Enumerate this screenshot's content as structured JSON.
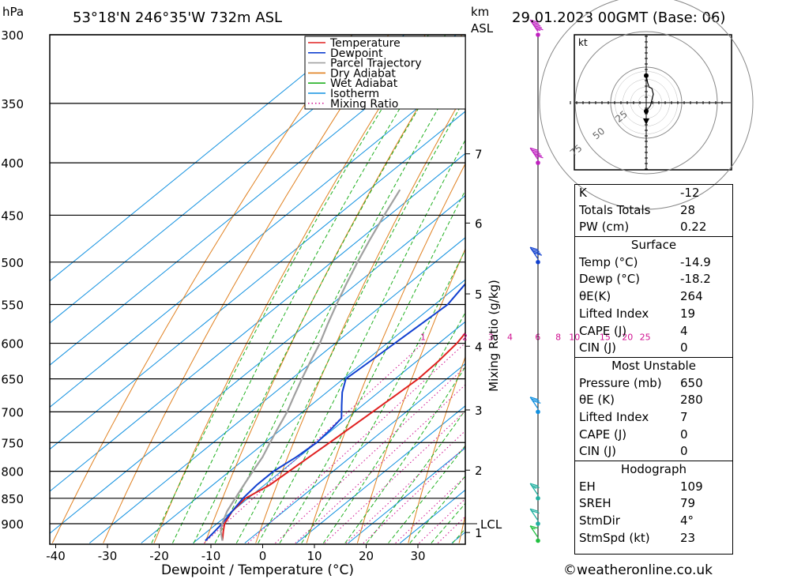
{
  "header": {
    "pressure_unit": "hPa",
    "location": "53°18'N  246°35'W  732m  ASL",
    "height_unit_km": "km",
    "height_unit_asl": "ASL",
    "datetime": "29.01.2023  00GMT  (Base: 06)"
  },
  "footer": {
    "copyright": "©weatheronline.co.uk"
  },
  "chart_data": {
    "type": "line",
    "title": "",
    "xlabel": "Dewpoint / Temperature (°C)",
    "ylabel": "hPa",
    "secondary_ylabel": "Mixing Ratio (g/kg)",
    "xlim": [
      -40,
      40
    ],
    "ylim": [
      940,
      300
    ],
    "x_ticks": [
      "-40",
      "-30",
      "-20",
      "-10",
      "0",
      "10",
      "20",
      "30"
    ],
    "pressure_levels": [
      "300",
      "350",
      "400",
      "450",
      "500",
      "550",
      "600",
      "650",
      "700",
      "750",
      "800",
      "850",
      "900"
    ],
    "km_ticks": [
      {
        "label": "7",
        "p": 392
      },
      {
        "label": "6",
        "p": 458
      },
      {
        "label": "5",
        "p": 537
      },
      {
        "label": "4",
        "p": 604
      },
      {
        "label": "3",
        "p": 697
      },
      {
        "label": "2",
        "p": 798
      },
      {
        "label": "1",
        "p": 918
      }
    ],
    "lcl": {
      "label": "LCL",
      "p": 900
    },
    "mixing_ratio_labels": [
      "1",
      "2",
      "3",
      "4",
      "6",
      "8",
      "10",
      "15",
      "20",
      "25"
    ],
    "legend": {
      "placement": "top-right",
      "entries": [
        {
          "name": "Temperature",
          "color": "#e02020",
          "style": "solid"
        },
        {
          "name": "Dewpoint",
          "color": "#1040d0",
          "style": "solid"
        },
        {
          "name": "Parcel Trajectory",
          "color": "#a0a0a0",
          "style": "solid"
        },
        {
          "name": "Dry Adiabat",
          "color": "#e08020",
          "style": "solid"
        },
        {
          "name": "Wet Adiabat",
          "color": "#20b020",
          "style": "solid"
        },
        {
          "name": "Isotherm",
          "color": "#1090e0",
          "style": "solid"
        },
        {
          "name": "Mixing Ratio",
          "color": "#d01090",
          "style": "dotted"
        }
      ]
    },
    "series": [
      {
        "name": "Temperature",
        "color": "#e02020",
        "points": [
          [
            -14.9,
            935
          ],
          [
            -17,
            915
          ],
          [
            -18.5,
            900
          ],
          [
            -20,
            875
          ],
          [
            -20.5,
            850
          ],
          [
            -19,
            825
          ],
          [
            -18.5,
            800
          ],
          [
            -18,
            775
          ],
          [
            -17.5,
            750
          ],
          [
            -17,
            725
          ],
          [
            -16.5,
            700
          ],
          [
            -16,
            675
          ],
          [
            -15.5,
            650
          ],
          [
            -15.8,
            625
          ],
          [
            -16.5,
            600
          ],
          [
            -18,
            575
          ],
          [
            -20,
            550
          ],
          [
            -22,
            525
          ],
          [
            -24,
            500
          ],
          [
            -26,
            475
          ],
          [
            -28,
            450
          ],
          [
            -30,
            425
          ],
          [
            -32,
            400
          ],
          [
            -34,
            375
          ],
          [
            -35.5,
            350
          ],
          [
            -35,
            325
          ],
          [
            -35,
            300
          ]
        ]
      },
      {
        "name": "Dewpoint",
        "color": "#1040d0",
        "points": [
          [
            -18.2,
            935
          ],
          [
            -18.5,
            920
          ],
          [
            -19,
            900
          ],
          [
            -20,
            875
          ],
          [
            -21,
            850
          ],
          [
            -21.5,
            825
          ],
          [
            -21.5,
            800
          ],
          [
            -20.5,
            775
          ],
          [
            -20,
            750
          ],
          [
            -20.5,
            725
          ],
          [
            -21,
            710
          ],
          [
            -24,
            690
          ],
          [
            -27,
            670
          ],
          [
            -29.5,
            650
          ],
          [
            -29,
            625
          ],
          [
            -28.5,
            600
          ],
          [
            -28,
            575
          ],
          [
            -27.5,
            550
          ],
          [
            -29,
            525
          ],
          [
            -30.5,
            500
          ],
          [
            -30,
            475
          ],
          [
            -30.5,
            450
          ],
          [
            -31.5,
            425
          ],
          [
            -33,
            400
          ],
          [
            -35,
            375
          ],
          [
            -37,
            350
          ],
          [
            -40,
            325
          ],
          [
            -45,
            300
          ]
        ]
      },
      {
        "name": "Parcel Trajectory",
        "color": "#a0a0a0",
        "points": [
          [
            -14.9,
            935
          ],
          [
            -17.5,
            915
          ],
          [
            -19,
            900
          ],
          [
            -21,
            875
          ],
          [
            -22.5,
            850
          ],
          [
            -24,
            825
          ],
          [
            -25.5,
            800
          ],
          [
            -27,
            775
          ],
          [
            -29,
            750
          ],
          [
            -31,
            725
          ],
          [
            -33,
            700
          ],
          [
            -35.5,
            675
          ],
          [
            -38,
            650
          ],
          [
            -40.5,
            625
          ],
          [
            -43,
            600
          ],
          [
            -46,
            575
          ],
          [
            -49,
            550
          ],
          [
            -52,
            525
          ],
          [
            -55,
            500
          ],
          [
            -58,
            475
          ],
          [
            -61,
            450
          ],
          [
            -64,
            425
          ]
        ]
      }
    ]
  },
  "hodograph": {
    "unit": "kt",
    "ring_labels": [
      "25",
      "50",
      "75"
    ],
    "points": [
      [
        0,
        6
      ],
      [
        3,
        2
      ],
      [
        5,
        -6
      ],
      [
        4,
        -10
      ],
      [
        2,
        -11
      ],
      [
        1,
        -14
      ],
      [
        0,
        -19
      ]
    ]
  },
  "wind_barbs": [
    {
      "p": 300,
      "speed_kt": 55,
      "color": "#c020c0"
    },
    {
      "p": 400,
      "speed_kt": 50,
      "color": "#c020c0"
    },
    {
      "p": 500,
      "speed_kt": 40,
      "color": "#1040d0"
    },
    {
      "p": 700,
      "speed_kt": 30,
      "color": "#1090e0"
    },
    {
      "p": 850,
      "speed_kt": 25,
      "color": "#20b0a0"
    },
    {
      "p": 900,
      "speed_kt": 20,
      "color": "#20b0a0"
    },
    {
      "p": 935,
      "speed_kt": 15,
      "color": "#20c040"
    }
  ],
  "indices": {
    "top": [
      {
        "label": "K",
        "value": "-12"
      },
      {
        "label": "Totals Totals",
        "value": "28"
      },
      {
        "label": "PW (cm)",
        "value": "0.22"
      }
    ],
    "surface": {
      "title": "Surface",
      "rows": [
        {
          "label": "Temp (°C)",
          "value": "-14.9"
        },
        {
          "label": "Dewp (°C)",
          "value": "-18.2"
        },
        {
          "label": "θE(K)",
          "value": "264"
        },
        {
          "label": "Lifted Index",
          "value": "19"
        },
        {
          "label": "CAPE (J)",
          "value": "4"
        },
        {
          "label": "CIN (J)",
          "value": "0"
        }
      ]
    },
    "most_unstable": {
      "title": "Most Unstable",
      "rows": [
        {
          "label": "Pressure (mb)",
          "value": "650"
        },
        {
          "label": "θE (K)",
          "value": "280"
        },
        {
          "label": "Lifted Index",
          "value": "7"
        },
        {
          "label": "CAPE (J)",
          "value": "0"
        },
        {
          "label": "CIN (J)",
          "value": "0"
        }
      ]
    },
    "hodograph": {
      "title": "Hodograph",
      "rows": [
        {
          "label": "EH",
          "value": "109"
        },
        {
          "label": "SREH",
          "value": "79"
        },
        {
          "label": "StmDir",
          "value": "4°"
        },
        {
          "label": "StmSpd (kt)",
          "value": "23"
        }
      ]
    }
  }
}
